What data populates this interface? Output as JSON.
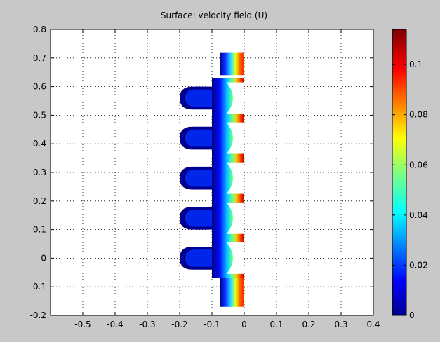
{
  "chart_data": {
    "type": "heatmap",
    "title": "Surface: velocity field (U)",
    "xlabel": "",
    "ylabel": "",
    "xlim": [
      -0.6,
      0.4
    ],
    "ylim": [
      -0.2,
      0.8
    ],
    "xticks": [
      "-0.5",
      "-0.4",
      "-0.3",
      "-0.2",
      "-0.1",
      "0",
      "0.1",
      "0.2",
      "0.3",
      "0.4"
    ],
    "yticks": [
      "0.8",
      "0.7",
      "0.6",
      "0.5",
      "0.4",
      "0.3",
      "0.2",
      "0.1",
      "0",
      "-0.1",
      "-0.2"
    ],
    "grid": true,
    "colorbar": {
      "range": [
        0,
        0.114
      ],
      "ticks": [
        "0.1",
        "0.08",
        "0.06",
        "0.04",
        "0.02",
        "0"
      ],
      "colormap": "jet"
    },
    "domain_description_values": {
      "inlet_channel": {
        "x": [
          -0.075,
          0
        ],
        "y": [
          -0.17,
          -0.025
        ]
      },
      "outlet_channel": {
        "x": [
          -0.075,
          0
        ],
        "y": [
          0.64,
          0.72
        ]
      },
      "chambers_y_centers": [
        0.0,
        0.14,
        0.28,
        0.42,
        0.56
      ],
      "chamber_x_extent": [
        -0.2,
        0
      ],
      "max_velocity": 0.114
    }
  },
  "colors": {
    "figure_background": "#c8c8c8",
    "axes_background": "#ffffff",
    "grid": "#000000"
  }
}
